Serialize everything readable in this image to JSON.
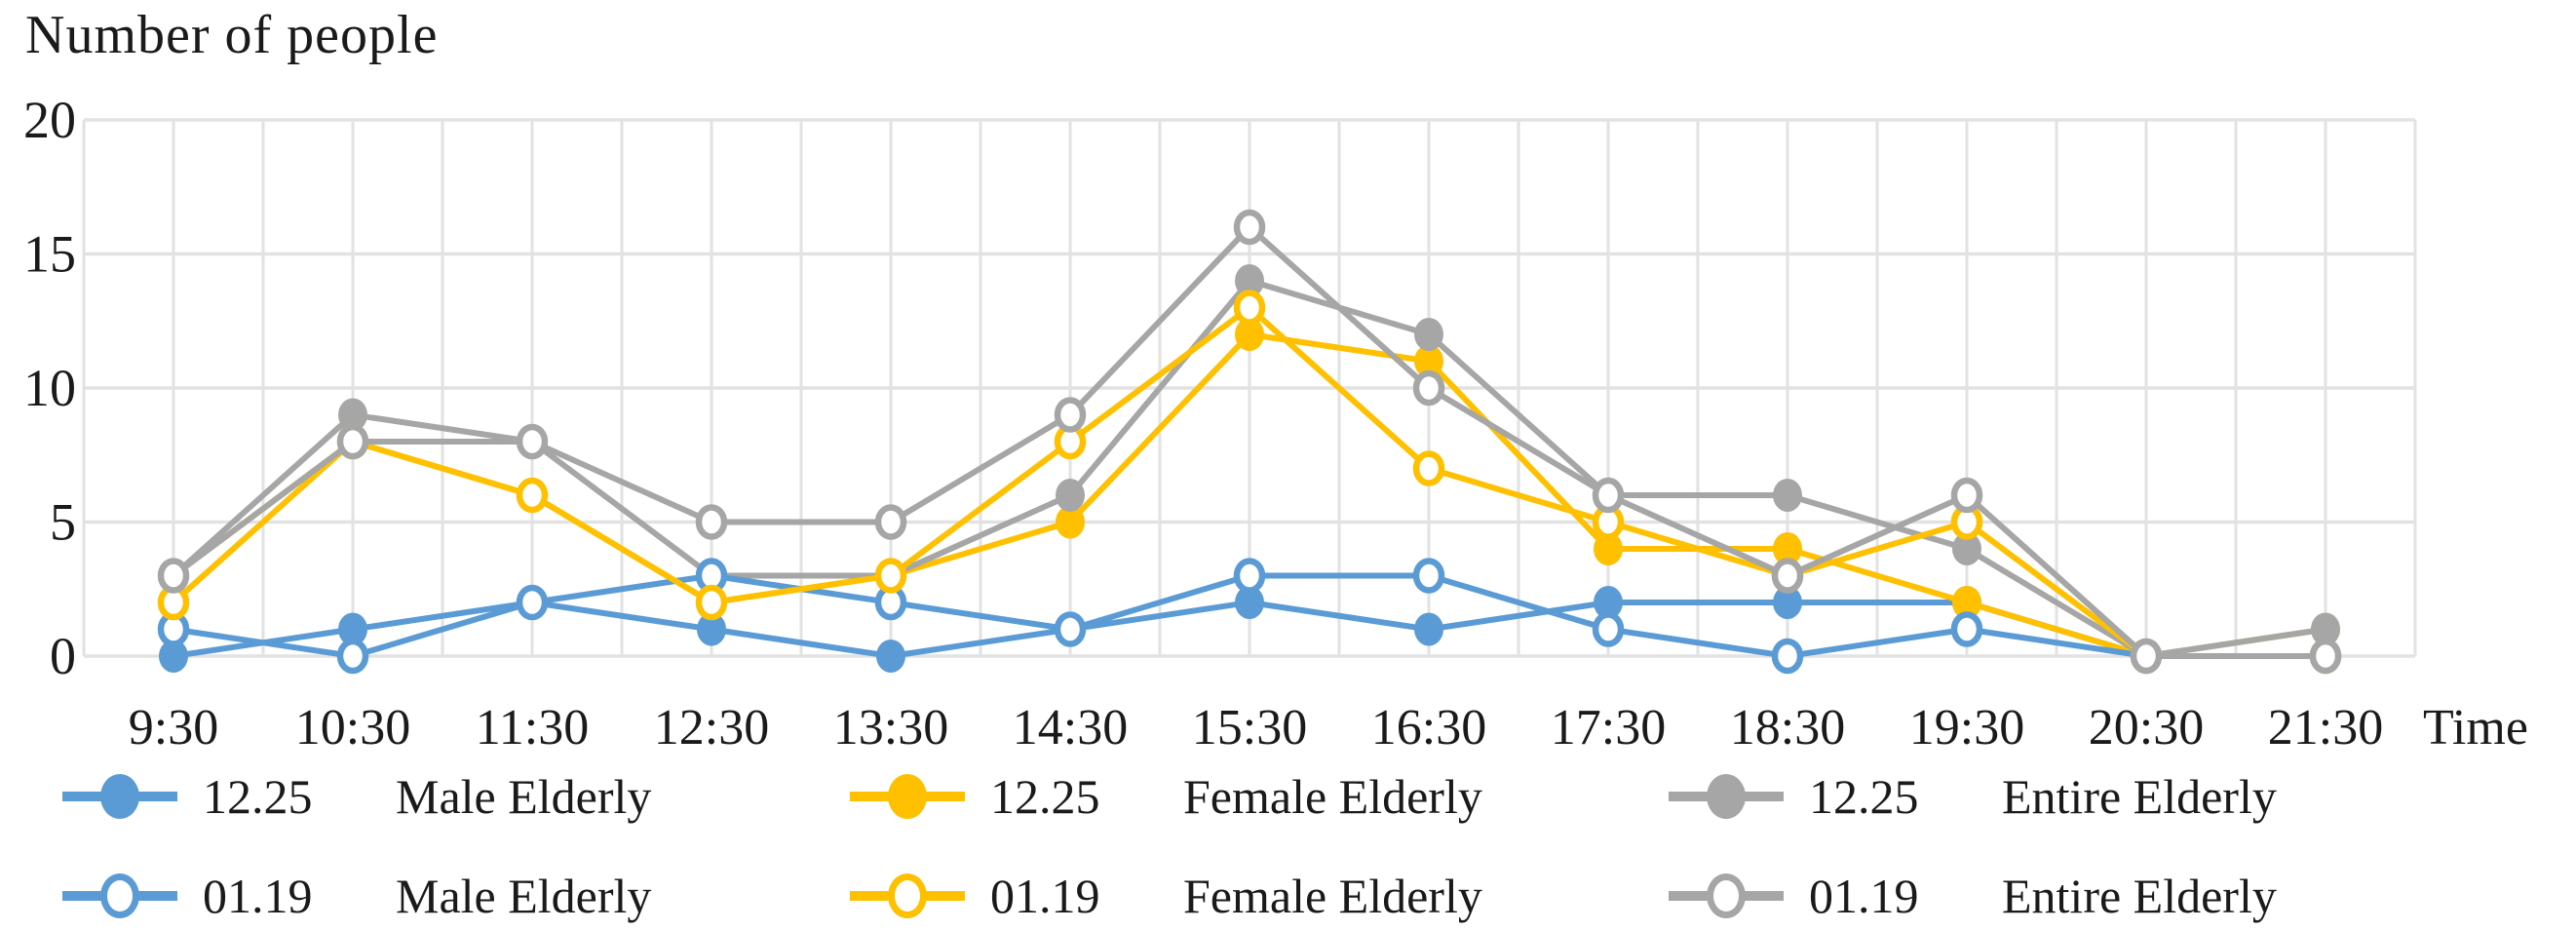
{
  "chart_data": {
    "type": "line",
    "title": "Number of people",
    "x_axis_title": "Time",
    "y_axis_title": "Number of people",
    "categories": [
      "9:30",
      "10:30",
      "11:30",
      "12:30",
      "13:30",
      "14:30",
      "15:30",
      "16:30",
      "17:30",
      "18:30",
      "19:30",
      "20:30",
      "21:30"
    ],
    "yticks": [
      0,
      5,
      10,
      15,
      20
    ],
    "ylim": [
      0,
      20
    ],
    "grid": true,
    "legend_position": "bottom",
    "colors": {
      "male": "#5B9BD5",
      "female": "#FFC000",
      "entire": "#A6A6A6",
      "gridline": "#E2E2E2",
      "text": "#1a1a1a",
      "background": "#FFFFFF"
    },
    "series": [
      {
        "date": "12.25",
        "name": "Male Elderly",
        "marker": "filled",
        "color_key": "male",
        "values": [
          0,
          1,
          2,
          1,
          0,
          1,
          2,
          1,
          2,
          2,
          2,
          0,
          0
        ]
      },
      {
        "date": "12.25",
        "name": "Female Elderly",
        "marker": "filled",
        "color_key": "female",
        "values": [
          3,
          8,
          6,
          2,
          3,
          5,
          12,
          11,
          4,
          4,
          2,
          0,
          1
        ]
      },
      {
        "date": "12.25",
        "name": "Entire Elderly",
        "marker": "filled",
        "color_key": "entire",
        "values": [
          3,
          9,
          8,
          3,
          3,
          6,
          14,
          12,
          6,
          6,
          4,
          0,
          1
        ]
      },
      {
        "date": "01.19",
        "name": "Male Elderly",
        "marker": "open",
        "color_key": "male",
        "values": [
          1,
          0,
          2,
          3,
          2,
          1,
          3,
          3,
          1,
          0,
          1,
          0,
          0
        ]
      },
      {
        "date": "01.19",
        "name": "Female Elderly",
        "marker": "open",
        "color_key": "female",
        "values": [
          2,
          8,
          6,
          2,
          3,
          8,
          13,
          7,
          5,
          3,
          5,
          0,
          0
        ]
      },
      {
        "date": "01.19",
        "name": "Entire Elderly",
        "marker": "open",
        "color_key": "entire",
        "values": [
          3,
          8,
          8,
          5,
          5,
          9,
          16,
          10,
          6,
          3,
          6,
          0,
          0
        ]
      }
    ]
  }
}
